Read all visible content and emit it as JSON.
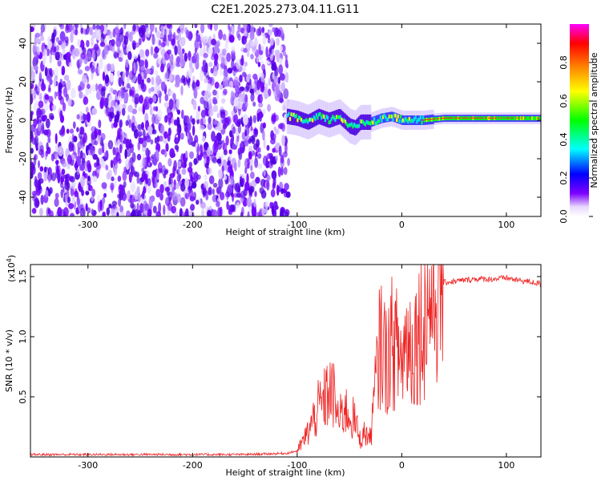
{
  "chart_data": [
    {
      "type": "heatmap",
      "title": "C2E1.2025.273.04.11.G11",
      "xlabel": "Height of straight line (km)",
      "ylabel": "Frequency (Hz)",
      "xlim": [
        -355,
        133
      ],
      "ylim": [
        -50,
        50
      ],
      "x_ticks": [
        -300,
        -200,
        -100,
        0,
        100
      ],
      "y_ticks": [
        -40,
        -20,
        0,
        20,
        40
      ],
      "colorbar": {
        "label": "Normalized spectral amplitude",
        "range": [
          0,
          1
        ],
        "ticks": [
          0.0,
          0.2,
          0.4,
          0.6,
          0.8
        ],
        "colormap": [
          "#ffffff",
          "#7d00ff",
          "#0000ff",
          "#00ffff",
          "#00ff00",
          "#ffff00",
          "#ff8000",
          "#ff0000",
          "#ff00ff"
        ]
      },
      "signal_trace": {
        "x": [
          -110,
          -100,
          -90,
          -80,
          -70,
          -60,
          -50,
          -45,
          -40,
          -30,
          -20,
          -10,
          0,
          20,
          40,
          60,
          80,
          100,
          120,
          133
        ],
        "freq": [
          2,
          1,
          -1,
          2,
          0,
          2,
          -3,
          -4,
          -1,
          -1,
          1,
          2,
          0,
          0,
          1,
          1,
          1,
          1,
          1,
          1
        ]
      }
    },
    {
      "type": "line",
      "xlabel": "Height of straight line (km)",
      "ylabel": "SNR (10 * v/v)",
      "y_multiplier": "(x10",
      "y_multiplier_exp": "4",
      "y_multiplier_close": ")",
      "xlim": [
        -355,
        133
      ],
      "ylim": [
        0,
        1.6
      ],
      "x_ticks": [
        -300,
        -200,
        -100,
        0,
        100
      ],
      "y_ticks": [
        "0.5",
        "1.0",
        "1.5"
      ],
      "series": [
        {
          "color": "#ee2222",
          "x": [
            -355,
            -300,
            -250,
            -200,
            -150,
            -110,
            -100,
            -95,
            -90,
            -85,
            -80,
            -75,
            -70,
            -65,
            -60,
            -55,
            -50,
            -45,
            -40,
            -35,
            -30,
            -25,
            -20,
            -15,
            -10,
            -5,
            0,
            5,
            10,
            15,
            20,
            25,
            30,
            35,
            40,
            50,
            60,
            70,
            80,
            90,
            100,
            110,
            120,
            133
          ],
          "y": [
            0.02,
            0.02,
            0.02,
            0.02,
            0.02,
            0.03,
            0.05,
            0.12,
            0.2,
            0.3,
            0.4,
            0.45,
            0.55,
            0.5,
            0.3,
            0.4,
            0.35,
            0.3,
            0.15,
            0.2,
            0.15,
            0.6,
            1.0,
            0.8,
            0.95,
            0.9,
            0.8,
            1.0,
            0.9,
            1.05,
            1.1,
            1.25,
            1.35,
            1.4,
            1.45,
            1.46,
            1.47,
            1.48,
            1.48,
            1.48,
            1.49,
            1.47,
            1.46,
            1.44
          ]
        }
      ]
    }
  ]
}
